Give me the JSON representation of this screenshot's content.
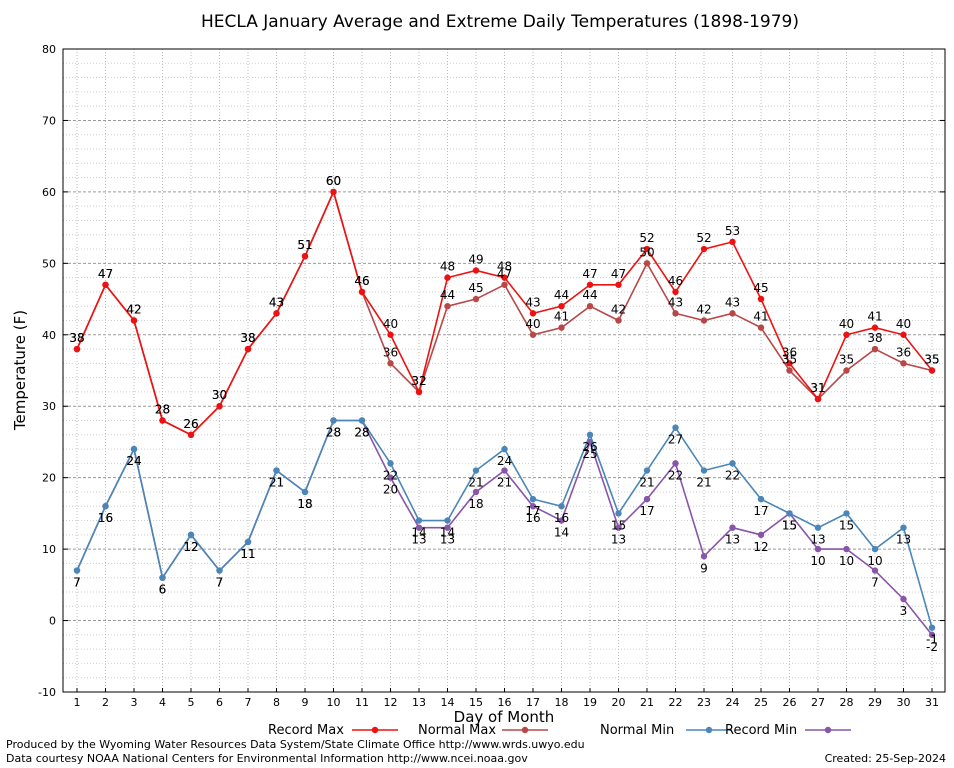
{
  "chart_data": {
    "type": "line",
    "title": "HECLA January Average and Extreme Daily Temperatures (1898-1979)",
    "xlabel": "Day of Month",
    "ylabel": "Temperature (F)",
    "ylim": [
      -10,
      80
    ],
    "yticks": [
      -10,
      0,
      10,
      20,
      30,
      40,
      50,
      60,
      70,
      80
    ],
    "categories": [
      "1",
      "2",
      "3",
      "4",
      "5",
      "6",
      "7",
      "8",
      "9",
      "10",
      "11",
      "12",
      "13",
      "14",
      "15",
      "16",
      "17",
      "18",
      "19",
      "20",
      "21",
      "22",
      "23",
      "24",
      "25",
      "26",
      "27",
      "28",
      "29",
      "30",
      "31"
    ],
    "grid": true,
    "legend_placement": "bottom",
    "series": [
      {
        "name": "Record Max",
        "color": "#ee1111",
        "marker": "circle",
        "values": [
          38,
          47,
          42,
          28,
          26,
          30,
          38,
          43,
          51,
          60,
          46,
          40,
          32,
          48,
          49,
          48,
          43,
          44,
          47,
          47,
          52,
          46,
          52,
          53,
          45,
          36,
          31,
          40,
          41,
          40,
          35
        ],
        "labels": [
          "38",
          "47",
          "42",
          "28",
          "26",
          "30",
          "38",
          "43",
          "51",
          "60",
          "46",
          "40",
          "32",
          "48",
          "49",
          "48",
          "43",
          "44",
          "47",
          "47",
          "52",
          "46",
          "52",
          "53",
          "45",
          "36",
          "31",
          "40",
          "41",
          "40",
          "35"
        ]
      },
      {
        "name": "Normal Max",
        "color": "#b84848",
        "marker": "circle",
        "values": [
          38,
          47,
          42,
          28,
          26,
          30,
          38,
          43,
          51,
          60,
          46,
          36,
          32,
          44,
          45,
          47,
          40,
          41,
          44,
          42,
          50,
          43,
          42,
          43,
          41,
          35,
          31,
          35,
          38,
          36,
          35
        ],
        "labels": [
          "38",
          "47",
          "42",
          "28",
          "26",
          "30",
          "38",
          "43",
          "51",
          "60",
          "46",
          "36",
          "32",
          "44",
          "45",
          "47",
          "40",
          "41",
          "44",
          "42",
          "50",
          "43",
          "42",
          "43",
          "41",
          "35",
          "31",
          "35",
          "38",
          "36",
          "35"
        ]
      },
      {
        "name": "Normal Min",
        "color": "#4a86b8",
        "marker": "circle",
        "values": [
          7,
          16,
          24,
          6,
          12,
          7,
          11,
          21,
          18,
          28,
          28,
          22,
          14,
          14,
          21,
          24,
          17,
          16,
          26,
          15,
          21,
          27,
          21,
          22,
          17,
          15,
          13,
          15,
          10,
          13,
          -1
        ],
        "labels": [
          "7",
          "16",
          "24",
          "6",
          "12",
          "7",
          "11",
          "21",
          "18",
          "28",
          "28",
          "22",
          "14",
          "14",
          "21",
          "24",
          "17",
          "16",
          "26",
          "15",
          "21",
          "27",
          "21",
          "22",
          "17",
          "15",
          "13",
          "15",
          "10",
          "13",
          "-1"
        ]
      },
      {
        "name": "Record Min",
        "color": "#8855a8",
        "marker": "circle",
        "values": [
          7,
          16,
          24,
          6,
          12,
          7,
          11,
          21,
          18,
          28,
          28,
          20,
          13,
          13,
          18,
          21,
          16,
          14,
          25,
          13,
          17,
          22,
          9,
          13,
          12,
          15,
          10,
          10,
          7,
          3,
          -2
        ],
        "labels": [
          "7",
          "16",
          "24",
          "6",
          "12",
          "7",
          "11",
          "21",
          "18",
          "28",
          "28",
          "20",
          "13",
          "13",
          "18",
          "21",
          "16",
          "14",
          "25",
          "13",
          "17",
          "22",
          "9",
          "13",
          "12",
          "15",
          "10",
          "10",
          "7",
          "3",
          "-2"
        ]
      }
    ]
  },
  "footer": {
    "produced_by": "Produced by the Wyoming Water Resources Data System/State Climate Office http://www.wrds.uwyo.edu",
    "data_courtesy": "Data courtesy NOAA National Centers for Environmental Information http://www.ncei.noaa.gov",
    "created": "Created:  25-Sep-2024"
  }
}
